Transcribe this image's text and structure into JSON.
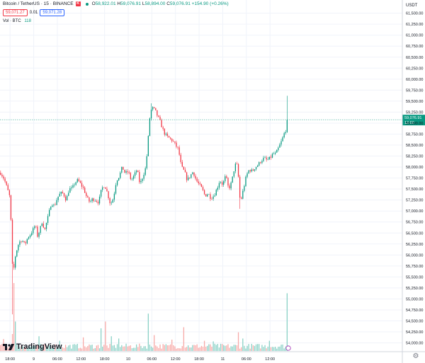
{
  "header": {
    "symbol": "Bitcoin / TetherUS · 15 · BINANCE",
    "exchange_badge": "K",
    "ohlc": {
      "o_label": "O",
      "o": "58,922.01",
      "h_label": "H",
      "h": "59,076.91",
      "l_label": "L",
      "l": "58,894.00",
      "c_label": "C",
      "c": "59,076.91",
      "change": "+154.90 (+0.26%)"
    },
    "sell_price": "59,071.27",
    "spread": "0.01",
    "buy_price": "59,071.28",
    "volume_label": "Vol · BTC",
    "volume_value": "118"
  },
  "logo_text": "TradingView",
  "current_price_label": {
    "price": "59,076.91",
    "countdown": "12:00"
  },
  "icons": {
    "settings": "gear-icon",
    "logo": "tradingview-logo-icon"
  },
  "colors": {
    "up": "#089981",
    "down": "#f23645",
    "up_vol": "#8ad1c6",
    "down_vol": "#f7a9a7",
    "grid": "#f0f3fa"
  },
  "chart_data": {
    "type": "candlestick",
    "quote_currency": "USDT",
    "interval": "15",
    "ylim": [
      53800,
      61800
    ],
    "y_ticks": [
      "54,000.00",
      "54,250.00",
      "54,500.00",
      "54,750.00",
      "55,000.00",
      "55,250.00",
      "55,500.00",
      "55,750.00",
      "56,000.00",
      "56,250.00",
      "56,500.00",
      "56,750.00",
      "57,000.00",
      "57,250.00",
      "57,500.00",
      "57,750.00",
      "58,000.00",
      "58,250.00",
      "58,500.00",
      "58,750.00",
      "59,000.00",
      "59,250.00",
      "59,500.00",
      "59,750.00",
      "60,000.00",
      "60,250.00",
      "60,500.00",
      "60,750.00",
      "61,000.00",
      "61,250.00",
      "61,500.00"
    ],
    "x_ticks": [
      "18:00",
      "9",
      "06:00",
      "12:00",
      "18:00",
      "10",
      "06:00",
      "12:00",
      "18:00",
      "11",
      "06:00",
      "12:00"
    ],
    "x_tick_units": [
      0,
      4,
      8,
      12,
      16,
      20,
      24,
      28,
      32,
      36,
      40,
      44
    ],
    "x_unit_hours": 6,
    "visible_hours": [
      -1.7,
      66.4
    ],
    "closes": [
      [
        -1.6,
        57870
      ],
      [
        -1.0,
        57730
      ],
      [
        -0.5,
        57520
      ],
      [
        0.0,
        57300
      ],
      [
        0.2,
        56600
      ],
      [
        0.4,
        55760
      ],
      [
        0.6,
        55640
      ],
      [
        0.8,
        55900
      ],
      [
        1.0,
        56050
      ],
      [
        1.5,
        56280
      ],
      [
        2.0,
        56350
      ],
      [
        2.5,
        56230
      ],
      [
        3.0,
        56400
      ],
      [
        3.5,
        56480
      ],
      [
        4.0,
        56600
      ],
      [
        4.3,
        56700
      ],
      [
        4.6,
        56420
      ],
      [
        5.0,
        56550
      ],
      [
        5.5,
        56800
      ],
      [
        5.8,
        56520
      ],
      [
        6.2,
        56750
      ],
      [
        6.5,
        56900
      ],
      [
        7.0,
        57200
      ],
      [
        7.5,
        57100
      ],
      [
        8.0,
        57300
      ],
      [
        8.5,
        57400
      ],
      [
        9.0,
        57400
      ],
      [
        9.5,
        57250
      ],
      [
        10.0,
        57500
      ],
      [
        10.5,
        57500
      ],
      [
        11.0,
        57650
      ],
      [
        11.5,
        57700
      ],
      [
        12.0,
        57600
      ],
      [
        12.5,
        57500
      ],
      [
        13.0,
        57300
      ],
      [
        13.5,
        57200
      ],
      [
        14.0,
        57280
      ],
      [
        14.5,
        57250
      ],
      [
        15.0,
        57200
      ],
      [
        15.5,
        57500
      ],
      [
        16.0,
        57600
      ],
      [
        16.5,
        57400
      ],
      [
        17.0,
        57150
      ],
      [
        17.5,
        57300
      ],
      [
        18.0,
        57700
      ],
      [
        18.5,
        57800
      ],
      [
        19.0,
        58000
      ],
      [
        19.5,
        57850
      ],
      [
        20.0,
        57900
      ],
      [
        20.5,
        57700
      ],
      [
        21.0,
        57800
      ],
      [
        21.5,
        57950
      ],
      [
        22.0,
        57600
      ],
      [
        22.5,
        57800
      ],
      [
        23.0,
        58000
      ],
      [
        23.3,
        58500
      ],
      [
        23.7,
        59200
      ],
      [
        24.0,
        59350
      ],
      [
        24.5,
        59300
      ],
      [
        25.0,
        59150
      ],
      [
        25.5,
        59000
      ],
      [
        26.0,
        58800
      ],
      [
        26.5,
        58700
      ],
      [
        27.0,
        58650
      ],
      [
        27.5,
        58600
      ],
      [
        28.0,
        58500
      ],
      [
        28.5,
        58400
      ],
      [
        29.0,
        58000
      ],
      [
        29.5,
        57900
      ],
      [
        30.0,
        57700
      ],
      [
        30.5,
        57800
      ],
      [
        31.0,
        57900
      ],
      [
        31.5,
        57700
      ],
      [
        32.0,
        57600
      ],
      [
        32.5,
        57500
      ],
      [
        33.0,
        57350
      ],
      [
        33.5,
        57400
      ],
      [
        34.0,
        57300
      ],
      [
        34.5,
        57350
      ],
      [
        35.0,
        57500
      ],
      [
        35.5,
        57700
      ],
      [
        36.0,
        57600
      ],
      [
        36.5,
        57800
      ],
      [
        37.0,
        57500
      ],
      [
        37.5,
        57650
      ],
      [
        38.0,
        58000
      ],
      [
        38.3,
        58100
      ],
      [
        38.6,
        57900
      ],
      [
        38.8,
        57400
      ],
      [
        39.0,
        57200
      ],
      [
        39.5,
        57500
      ],
      [
        40.0,
        57800
      ],
      [
        40.5,
        57950
      ],
      [
        41.0,
        57900
      ],
      [
        41.5,
        58000
      ],
      [
        42.0,
        58050
      ],
      [
        42.5,
        58150
      ],
      [
        43.0,
        58200
      ],
      [
        43.5,
        58150
      ],
      [
        44.0,
        58200
      ],
      [
        44.5,
        58300
      ],
      [
        45.0,
        58300
      ],
      [
        45.5,
        58450
      ],
      [
        46.0,
        58600
      ],
      [
        46.5,
        58800
      ],
      [
        46.9,
        58900
      ],
      [
        47.1,
        59076.91
      ]
    ],
    "volume_spikes": [
      [
        -1.2,
        105
      ],
      [
        0.3,
        150
      ],
      [
        0.6,
        600
      ],
      [
        1.0,
        260
      ],
      [
        5.0,
        130
      ],
      [
        8.3,
        90
      ],
      [
        12.5,
        120
      ],
      [
        15.5,
        200
      ],
      [
        16.2,
        260
      ],
      [
        17.2,
        130
      ],
      [
        18.3,
        110
      ],
      [
        23.5,
        330
      ],
      [
        24.5,
        140
      ],
      [
        27.5,
        100
      ],
      [
        29.5,
        210
      ],
      [
        33.0,
        90
      ],
      [
        34.5,
        85
      ],
      [
        38.7,
        165
      ],
      [
        39.5,
        110
      ],
      [
        44.0,
        90
      ],
      [
        47.0,
        510
      ]
    ]
  }
}
